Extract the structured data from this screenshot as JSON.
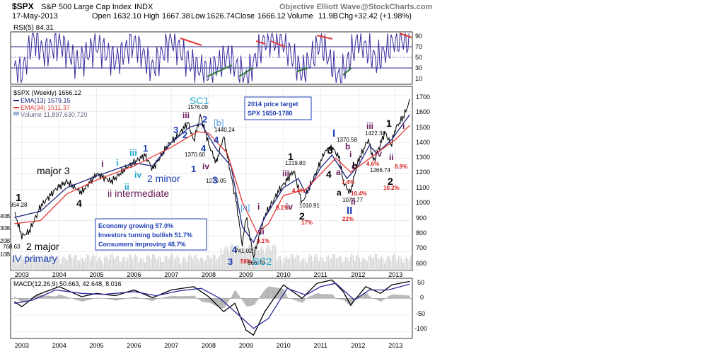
{
  "header": {
    "symbol": "$SPX",
    "name": "S&P 500 Large Cap Index",
    "exchange": "INDX",
    "date": "17-May-2013",
    "open_label": "Open",
    "open": "1632.10",
    "high_label": "High",
    "high": "1667.38",
    "low_label": "Low",
    "low": "1626.74",
    "close_label": "Close",
    "close": "1666.12",
    "volume_label": "Volume",
    "volume": "11.9B",
    "chg_label": "Chg",
    "chg": "+32.42 (+1.98%)",
    "source": "Objective Elliott Wave",
    "source2": "@StockCharts.com"
  },
  "colors": {
    "rsi": "#3a2e9e",
    "ema13": "#1a237e",
    "ema34": "#e53935",
    "volume": "#cfcfcf",
    "price": "#000000",
    "divergence_red": "#e53935",
    "divergence_green": "#2e7d32",
    "wave_blue": "#1e3fb5",
    "wave_cyan": "#19a5c9",
    "wave_purple": "#6a1b5a",
    "pct_red": "#d81b1b",
    "macd_line": "#000000",
    "macd_signal": "#2a2a9c",
    "macd_hist": "#b5b5b5"
  },
  "rsi_panel": {
    "label": "RSI(5) 84.31",
    "ticks": [
      "90",
      "70",
      "50",
      "30",
      "10"
    ]
  },
  "price_panel": {
    "legend": [
      {
        "text": "$SPX (Weekly) 1666.12",
        "color": "#000000"
      },
      {
        "text": "EMA(13) 1579.15",
        "color": "#1a237e"
      },
      {
        "text": "EMA(34) 1511.37",
        "color": "#e53935"
      },
      {
        "text": "Volume 11,897,630,720",
        "color": "#6a6a8a"
      }
    ],
    "yticks": [
      "1700",
      "1600",
      "1500",
      "1400",
      "1300",
      "1200",
      "1100",
      "1000",
      "900",
      "800",
      "700",
      "600"
    ],
    "left_vol_labels": [
      "40B",
      "30B",
      "20B",
      "10B"
    ],
    "target_box": [
      "2014 price target",
      "SPX 1650-1780"
    ],
    "info_box": [
      "Economy growing 57.0%",
      "Investors turning bullish 51.7%",
      "Consumers improving 48.7%"
    ]
  },
  "macd_panel": {
    "label": "MACD(12,26,9) 50.663, 42.648, 8.016",
    "ticks": [
      "50",
      "0",
      "-50",
      "-100"
    ]
  },
  "x_axis": {
    "years": [
      "2003",
      "2004",
      "2005",
      "2006",
      "2007",
      "2008",
      "2009",
      "2010",
      "2011",
      "2012",
      "2013"
    ]
  },
  "annotations": [
    {
      "text": "1",
      "color": "#000000",
      "size": 15,
      "bold": true
    },
    {
      "text": "954.28",
      "color": "#000000",
      "size": 8,
      "bold": false
    },
    {
      "text": "major 3",
      "color": "#000000",
      "size": 14,
      "bold": false
    },
    {
      "text": "4",
      "color": "#000000",
      "size": 14,
      "bold": true
    },
    {
      "text": "2 major",
      "color": "#000000",
      "size": 14,
      "bold": false
    },
    {
      "text": "768.63",
      "color": "#000000",
      "size": 8,
      "bold": false
    },
    {
      "text": "IV primary",
      "color": "#1e3fb5",
      "size": 14,
      "bold": false
    },
    {
      "text": "i",
      "color": "#6a1b5a",
      "size": 13,
      "bold": true
    },
    {
      "text": "i",
      "color": "#19a5c9",
      "size": 13,
      "bold": true
    },
    {
      "text": "iii",
      "color": "#19a5c9",
      "size": 13,
      "bold": true
    },
    {
      "text": "1",
      "color": "#1e3fb5",
      "size": 13,
      "bold": true
    },
    {
      "text": "iv",
      "color": "#19a5c9",
      "size": 12,
      "bold": true
    },
    {
      "text": "ii",
      "color": "#19a5c9",
      "size": 12,
      "bold": true
    },
    {
      "text": "2 minor",
      "color": "#1e3fb5",
      "size": 14,
      "bold": false
    },
    {
      "text": "ii intermediate",
      "color": "#6a1b5a",
      "size": 14,
      "bold": false
    },
    {
      "text": "SC1",
      "color": "#19a5c9",
      "size": 14,
      "bold": false
    },
    {
      "text": "1576.09",
      "color": "#000000",
      "size": 8,
      "bold": false
    },
    {
      "text": "iii",
      "color": "#6a1b5a",
      "size": 12,
      "bold": true
    },
    {
      "text": "3",
      "color": "#1e3fb5",
      "size": 13,
      "bold": true
    },
    {
      "text": "2",
      "color": "#1e3fb5",
      "size": 13,
      "bold": true
    },
    {
      "text": "[b]",
      "color": "#5aa0e0",
      "size": 13,
      "bold": false
    },
    {
      "text": "1440.24",
      "color": "#000000",
      "size": 8,
      "bold": false
    },
    {
      "text": "4",
      "color": "#1e3fb5",
      "size": 13,
      "bold": true
    },
    {
      "text": "2",
      "color": "#1e3fb5",
      "size": 13,
      "bold": true
    },
    {
      "text": "1370.60",
      "color": "#000000",
      "size": 8,
      "bold": false
    },
    {
      "text": "4",
      "color": "#1e3fb5",
      "size": 13,
      "bold": true
    },
    {
      "text": "iv",
      "color": "#6a1b5a",
      "size": 12,
      "bold": true
    },
    {
      "text": "1",
      "color": "#1e3fb5",
      "size": 13,
      "bold": true
    },
    {
      "text": "1270.05",
      "color": "#000000",
      "size": 8,
      "bold": false
    },
    {
      "text": "3",
      "color": "#1e3fb5",
      "size": 14,
      "bold": true
    },
    {
      "text": "[a]",
      "color": "#5aa0e0",
      "size": 12,
      "bold": false
    },
    {
      "text": "4",
      "color": "#1e3fb5",
      "size": 13,
      "bold": true
    },
    {
      "text": "741.02",
      "color": "#000000",
      "size": 8,
      "bold": false
    },
    {
      "text": "3",
      "color": "#1e3fb5",
      "size": 13,
      "bold": true
    },
    {
      "text": "58%",
      "color": "#d81b1b",
      "size": 8,
      "bold": true
    },
    {
      "text": "666.79",
      "color": "#000000",
      "size": 8,
      "bold": false
    },
    {
      "text": "SC2",
      "color": "#19a5c9",
      "size": 14,
      "bold": false
    },
    {
      "text": "i",
      "color": "#6a1b5a",
      "size": 12,
      "bold": true
    },
    {
      "text": "ii",
      "color": "#6a1b5a",
      "size": 12,
      "bold": true
    },
    {
      "text": "9.1%",
      "color": "#d81b1b",
      "size": 8,
      "bold": true
    },
    {
      "text": "1",
      "color": "#000000",
      "size": 14,
      "bold": true
    },
    {
      "text": "1219.80",
      "color": "#000000",
      "size": 8,
      "bold": false
    },
    {
      "text": "iii",
      "color": "#6a1b5a",
      "size": 12,
      "bold": true
    },
    {
      "text": "iv",
      "color": "#6a1b5a",
      "size": 12,
      "bold": true
    },
    {
      "text": "9.1%",
      "color": "#d81b1b",
      "size": 8,
      "bold": true
    },
    {
      "text": "1010.91",
      "color": "#000000",
      "size": 8,
      "bold": false
    },
    {
      "text": "2",
      "color": "#000000",
      "size": 14,
      "bold": true
    },
    {
      "text": "17%",
      "color": "#d81b1b",
      "size": 8,
      "bold": true
    },
    {
      "text": "4.4%",
      "color": "#d81b1b",
      "size": 8,
      "bold": true
    },
    {
      "text": "I",
      "color": "#1e3fb5",
      "size": 15,
      "bold": true
    },
    {
      "text": "1370.58",
      "color": "#000000",
      "size": 8,
      "bold": false
    },
    {
      "text": "3",
      "color": "#000000",
      "size": 14,
      "bold": true
    },
    {
      "text": "4",
      "color": "#000000",
      "size": 14,
      "bold": true
    },
    {
      "text": "a",
      "color": "#6a1b5a",
      "size": 12,
      "bold": true
    },
    {
      "text": "7.4%",
      "color": "#d81b1b",
      "size": 8,
      "bold": true
    },
    {
      "text": "b",
      "color": "#6a1b5a",
      "size": 12,
      "bold": true
    },
    {
      "text": "i",
      "color": "#6a1b5a",
      "size": 12,
      "bold": true
    },
    {
      "text": "c",
      "color": "#6a1b5a",
      "size": 12,
      "bold": true
    },
    {
      "text": "a",
      "color": "#000000",
      "size": 12,
      "bold": true
    },
    {
      "text": "b",
      "color": "#000000",
      "size": 12,
      "bold": true
    },
    {
      "text": "1074.77",
      "color": "#000000",
      "size": 8,
      "bold": false
    },
    {
      "text": "ii",
      "color": "#6a1b5a",
      "size": 12,
      "bold": true
    },
    {
      "text": "10.4%",
      "color": "#d81b1b",
      "size": 8,
      "bold": true
    },
    {
      "text": "II",
      "color": "#1e3fb5",
      "size": 15,
      "bold": true
    },
    {
      "text": "22%",
      "color": "#d81b1b",
      "size": 8,
      "bold": true
    },
    {
      "text": "iii",
      "color": "#6a1b5a",
      "size": 12,
      "bold": true
    },
    {
      "text": "1",
      "color": "#000000",
      "size": 14,
      "bold": true
    },
    {
      "text": "1422.38",
      "color": "#000000",
      "size": 8,
      "bold": false
    },
    {
      "text": "iv",
      "color": "#6a1b5a",
      "size": 12,
      "bold": true
    },
    {
      "text": "4.6%",
      "color": "#d81b1b",
      "size": 8,
      "bold": true
    },
    {
      "text": "1266.74",
      "color": "#000000",
      "size": 8,
      "bold": false
    },
    {
      "text": "2",
      "color": "#000000",
      "size": 14,
      "bold": true
    },
    {
      "text": "10.2%",
      "color": "#d81b1b",
      "size": 8,
      "bold": true
    },
    {
      "text": "i",
      "color": "#6a1b5a",
      "size": 12,
      "bold": true
    },
    {
      "text": "ii",
      "color": "#6a1b5a",
      "size": 12,
      "bold": true
    },
    {
      "text": "8.9%",
      "color": "#d81b1b",
      "size": 8,
      "bold": true
    }
  ],
  "chart_data": [
    {
      "type": "line",
      "panel": "price",
      "title": "$SPX (Weekly) 1666.12",
      "ylim": [
        580,
        1760
      ],
      "xlim": [
        2002.7,
        2013.45
      ],
      "series": [
        {
          "name": "$SPX (Weekly) 1666.12",
          "x": [
            2002.8,
            2003.0,
            2003.2,
            2003.5,
            2003.9,
            2004.2,
            2004.6,
            2005.0,
            2005.4,
            2005.8,
            2006.3,
            2006.5,
            2006.9,
            2007.2,
            2007.45,
            2007.6,
            2007.78,
            2008.0,
            2008.2,
            2008.4,
            2008.55,
            2008.75,
            2008.9,
            2009.0,
            2009.2,
            2009.5,
            2009.9,
            2010.28,
            2010.5,
            2010.9,
            2011.1,
            2011.3,
            2011.5,
            2011.6,
            2011.78,
            2012.0,
            2012.27,
            2012.42,
            2012.72,
            2012.88,
            2013.0,
            2013.2,
            2013.38
          ],
          "values": [
            954,
            800,
            830,
            990,
            1100,
            1150,
            1080,
            1200,
            1150,
            1240,
            1320,
            1230,
            1380,
            1450,
            1530,
            1410,
            1576,
            1390,
            1270,
            1440,
            1250,
            1000,
            741,
            930,
            667,
            930,
            1100,
            1220,
            1011,
            1220,
            1340,
            1370,
            1300,
            1150,
            1075,
            1280,
            1422,
            1280,
            1470,
            1380,
            1490,
            1560,
            1666
          ]
        },
        {
          "name": "EMA(13) 1579.15",
          "x": [
            2002.8,
            2003.5,
            2004.2,
            2005.0,
            2006.0,
            2006.5,
            2007.0,
            2007.5,
            2007.8,
            2008.2,
            2008.6,
            2008.9,
            2009.2,
            2009.5,
            2010.0,
            2010.4,
            2010.6,
            2011.0,
            2011.3,
            2011.7,
            2012.0,
            2012.3,
            2012.5,
            2012.9,
            2013.38
          ],
          "values": [
            920,
            960,
            1110,
            1185,
            1270,
            1250,
            1400,
            1500,
            1520,
            1360,
            1250,
            860,
            760,
            920,
            1110,
            1170,
            1070,
            1240,
            1320,
            1170,
            1250,
            1380,
            1330,
            1420,
            1579
          ]
        },
        {
          "name": "EMA(34) 1511.37",
          "x": [
            2002.8,
            2003.5,
            2004.2,
            2005.0,
            2006.0,
            2007.0,
            2007.7,
            2008.0,
            2008.5,
            2008.9,
            2009.3,
            2009.6,
            2010.0,
            2010.6,
            2011.0,
            2011.4,
            2011.8,
            2012.2,
            2012.6,
            2013.0,
            2013.38
          ],
          "values": [
            880,
            900,
            1070,
            1160,
            1250,
            1370,
            1470,
            1460,
            1330,
            1020,
            820,
            880,
            1060,
            1100,
            1200,
            1300,
            1210,
            1280,
            1350,
            1420,
            1511
          ]
        }
      ]
    },
    {
      "type": "line",
      "panel": "rsi",
      "title": "RSI(5) 84.31",
      "ylim": [
        0,
        100
      ],
      "series": [
        {
          "name": "RSI(5) 84.31",
          "x": [
            2002.8,
            2003.0,
            2003.3,
            2003.6,
            2004.0,
            2004.5,
            2005.0,
            2005.5,
            2006.0,
            2006.5,
            2007.0,
            2007.5,
            2008.0,
            2008.5,
            2009.0,
            2009.5,
            2010.0,
            2010.5,
            2011.0,
            2011.5,
            2012.0,
            2012.5,
            2013.0,
            2013.38
          ],
          "values": [
            30,
            20,
            90,
            60,
            80,
            40,
            75,
            45,
            80,
            30,
            85,
            40,
            20,
            55,
            10,
            85,
            80,
            20,
            80,
            10,
            85,
            45,
            85,
            84.31
          ]
        }
      ]
    },
    {
      "type": "line",
      "panel": "macd",
      "title": "MACD(12,26,9) 50.663, 42.648, 8.016",
      "ylim": [
        -120,
        60
      ],
      "series": [
        {
          "name": "MACD(12,26,9) 50.663",
          "x": [
            2002.8,
            2003.0,
            2003.4,
            2004.0,
            2004.6,
            2005.0,
            2005.5,
            2006.0,
            2006.5,
            2007.0,
            2007.6,
            2008.0,
            2008.4,
            2008.7,
            2009.0,
            2009.2,
            2009.5,
            2010.0,
            2010.5,
            2010.9,
            2011.3,
            2011.6,
            2011.8,
            2012.2,
            2012.6,
            2012.9,
            2013.38
          ],
          "values": [
            -10,
            -25,
            10,
            35,
            5,
            15,
            8,
            25,
            2,
            25,
            35,
            5,
            -40,
            -15,
            -95,
            -110,
            -40,
            40,
            0,
            45,
            55,
            20,
            -20,
            35,
            15,
            40,
            50.663
          ]
        },
        {
          "name": "42.648",
          "x": [
            2002.8,
            2003.3,
            2003.9,
            2004.6,
            2005.2,
            2006.0,
            2006.6,
            2007.2,
            2007.8,
            2008.3,
            2008.8,
            2009.2,
            2009.6,
            2010.1,
            2010.6,
            2011.0,
            2011.4,
            2011.9,
            2012.3,
            2012.8,
            2013.38
          ],
          "values": [
            -15,
            -5,
            25,
            15,
            12,
            20,
            8,
            22,
            30,
            0,
            -50,
            -90,
            -60,
            30,
            10,
            35,
            45,
            -5,
            25,
            25,
            42.648
          ]
        }
      ]
    }
  ]
}
